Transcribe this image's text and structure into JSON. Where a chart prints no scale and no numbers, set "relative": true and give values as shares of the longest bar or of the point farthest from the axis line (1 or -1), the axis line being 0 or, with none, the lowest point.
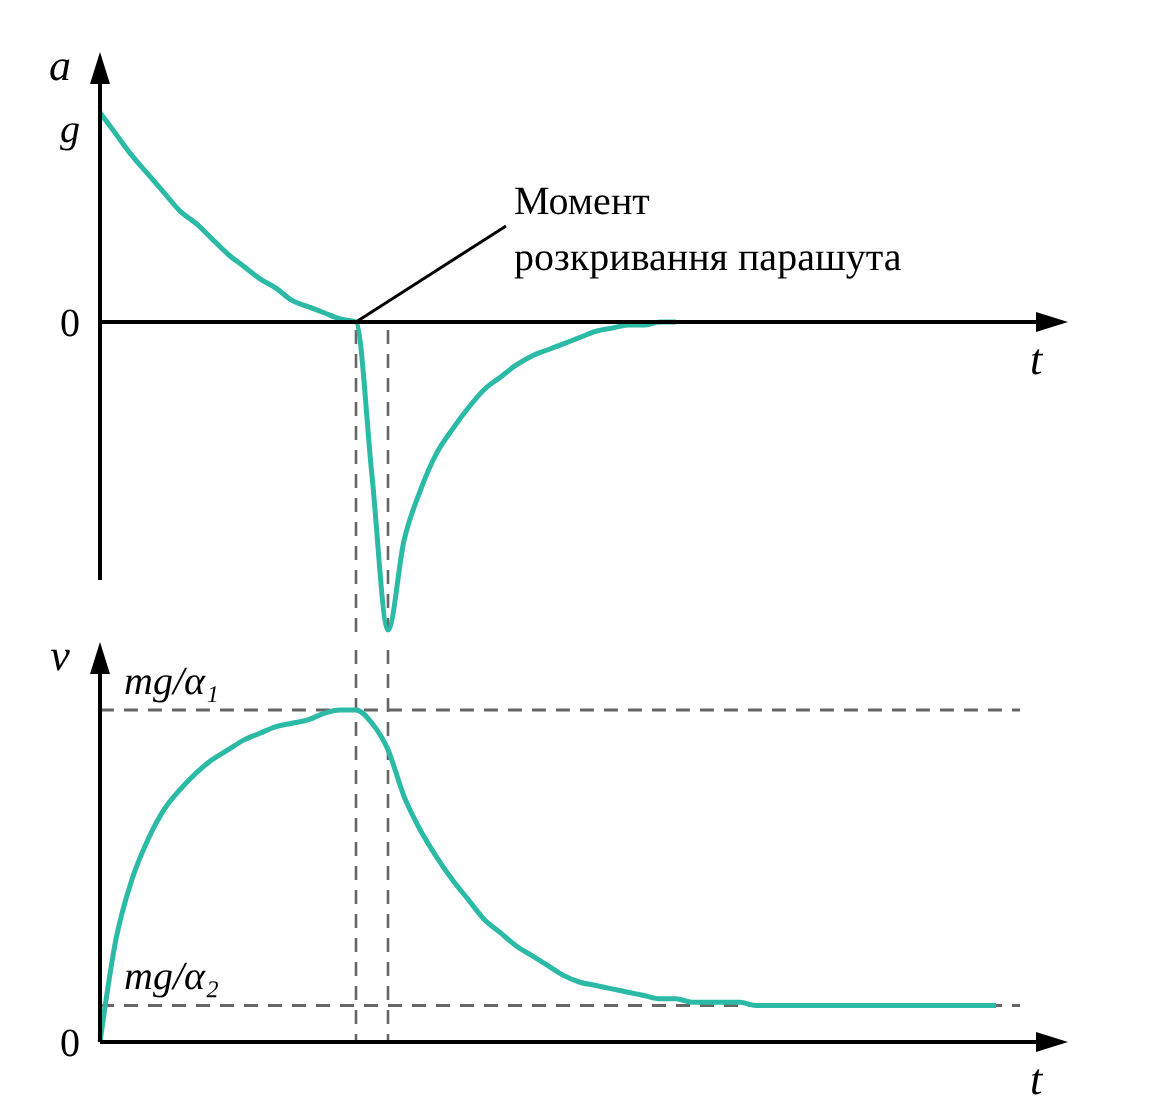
{
  "chart_data": [
    {
      "type": "line",
      "relative": true,
      "ylabel": "a",
      "xlabel": "t",
      "categories": [
        null,
        null,
        null,
        null,
        null,
        null,
        null,
        null,
        null,
        null,
        null,
        null,
        null,
        null,
        null,
        null,
        null,
        null,
        null,
        null,
        null,
        null,
        null,
        null,
        null,
        null,
        null,
        null,
        null,
        null,
        null,
        null,
        null,
        null,
        null,
        null,
        null,
        null,
        null,
        null,
        null,
        null,
        null,
        null,
        null,
        null,
        null,
        null,
        null,
        null,
        null,
        null,
        null,
        null,
        null,
        null,
        null
      ],
      "series": [
        {
          "color": "#2bbaa5",
          "values": [
            0.68,
            0.61,
            0.54,
            0.48,
            0.42,
            0.36,
            0.32,
            0.27,
            0.22,
            0.18,
            0.14,
            0.11,
            0.07,
            0.05,
            0.03,
            0.01,
            0,
            -0.5,
            -1,
            -0.71,
            -0.55,
            -0.43,
            -0.35,
            -0.28,
            -0.22,
            -0.18,
            -0.14,
            -0.11,
            -0.09,
            -0.07,
            -0.05,
            -0.03,
            -0.02,
            -0.01,
            -0.01,
            0,
            0,
            null,
            null,
            null,
            null,
            null,
            null,
            null,
            null,
            null,
            null,
            null,
            null,
            null,
            null,
            null,
            null,
            null,
            null,
            null,
            null
          ]
        }
      ],
      "annotations": [
        "Момент розкривання парашута",
        "g",
        "0"
      ],
      "marker": "none",
      "line_style": "solid"
    },
    {
      "type": "line",
      "relative": true,
      "ylabel": "v",
      "xlabel": "t",
      "categories": [
        null,
        null,
        null,
        null,
        null,
        null,
        null,
        null,
        null,
        null,
        null,
        null,
        null,
        null,
        null,
        null,
        null,
        null,
        null,
        null,
        null,
        null,
        null,
        null,
        null,
        null,
        null,
        null,
        null,
        null,
        null,
        null,
        null,
        null,
        null,
        null,
        null,
        null,
        null,
        null,
        null,
        null,
        null,
        null,
        null,
        null,
        null,
        null,
        null,
        null,
        null,
        null,
        null,
        null,
        null,
        null,
        null
      ],
      "series": [
        {
          "color": "#2bbaa5",
          "values": [
            0,
            0.31,
            0.49,
            0.61,
            0.7,
            0.76,
            0.81,
            0.85,
            0.88,
            0.91,
            0.93,
            0.95,
            0.96,
            0.97,
            0.99,
            1,
            1,
            0.96,
            0.88,
            0.74,
            0.64,
            0.56,
            0.49,
            0.43,
            0.37,
            0.33,
            0.29,
            0.26,
            0.23,
            0.2,
            0.18,
            0.17,
            0.16,
            0.15,
            0.14,
            0.13,
            0.13,
            0.12,
            0.12,
            0.12,
            0.12,
            0.11,
            0.11,
            0.11,
            0.11,
            0.11,
            0.11,
            0.11,
            0.11,
            0.11,
            0.11,
            0.11,
            0.11,
            0.11,
            0.11,
            0.11,
            0.11
          ]
        }
      ],
      "ref_lines": [
        {
          "axis": "y",
          "value": 1,
          "label": "mg/α₁",
          "color": "#666666",
          "line_style": "dashed"
        },
        {
          "axis": "y",
          "value": 0.11,
          "label": "mg/α₂",
          "color": "#666666",
          "line_style": "dashed"
        }
      ],
      "annotations": [
        "0"
      ],
      "marker": "none",
      "line_style": "solid"
    }
  ]
}
